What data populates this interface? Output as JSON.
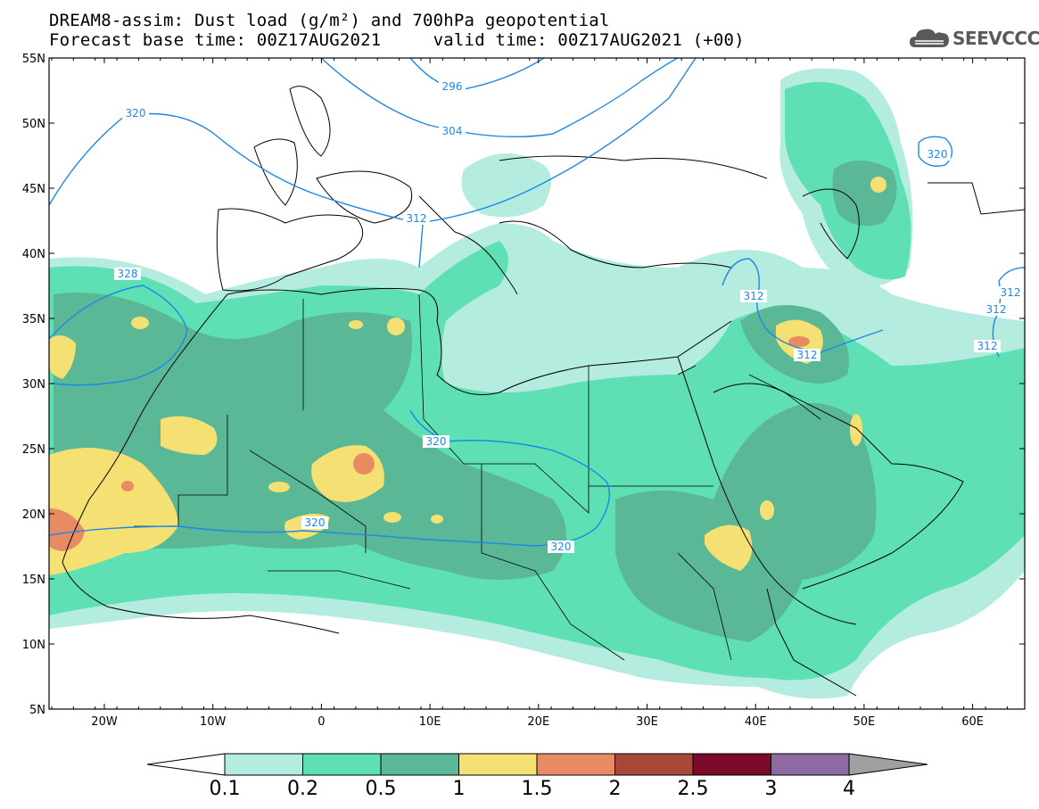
{
  "header": {
    "title_line1": "DREAM8-assim: Dust load (g/m²) and 700hPa geopotential",
    "title_line2": "Forecast base time: 00Z17AUG2021     valid time: 00Z17AUG2021 (+00)",
    "logo_text": "SEEVCCC"
  },
  "axes": {
    "lat_ticks": [
      "55N",
      "50N",
      "45N",
      "40N",
      "35N",
      "30N",
      "25N",
      "20N",
      "15N",
      "10N",
      "5N"
    ],
    "lon_ticks": [
      "20W",
      "10W",
      "0",
      "10E",
      "20E",
      "30E",
      "40E",
      "50E",
      "60E"
    ]
  },
  "isolines": [
    {
      "label": "296"
    },
    {
      "label": "304"
    },
    {
      "label": "320"
    },
    {
      "label": "312"
    },
    {
      "label": "328"
    },
    {
      "label": "320"
    },
    {
      "label": "320"
    },
    {
      "label": "320"
    },
    {
      "label": "320"
    },
    {
      "label": "312"
    },
    {
      "label": "312"
    },
    {
      "label": "312"
    },
    {
      "label": "312"
    },
    {
      "label": "312"
    }
  ],
  "colorbar": {
    "labels": [
      "0.1",
      "0.2",
      "0.5",
      "1",
      "1.5",
      "2",
      "2.5",
      "3",
      "4"
    ],
    "colors": [
      "#b4ece0",
      "#5ee0b4",
      "#5bb896",
      "#f5e173",
      "#e88a62",
      "#a84838",
      "#7c0a2a",
      "#8e6aa0"
    ],
    "end_color": "#a0a0a0"
  },
  "colors": {
    "isoline": "#1e88e5",
    "border": "#000000"
  }
}
